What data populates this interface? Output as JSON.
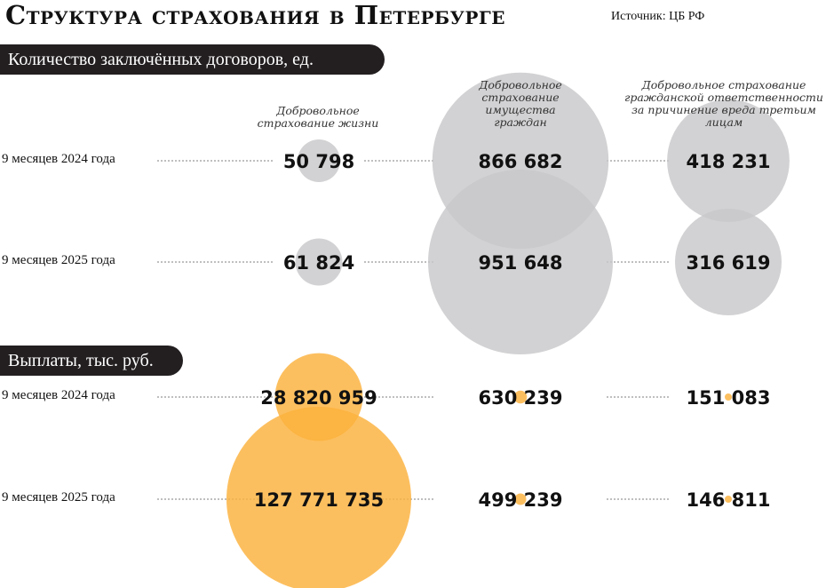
{
  "title": "Структура страхования в Петербурге",
  "source": "Источник: ЦБ РФ",
  "sections": [
    {
      "label": "Количество заключённых  договоров, ед."
    },
    {
      "label": "Выплаты, тыс. руб."
    }
  ],
  "row_labels": [
    "9 месяцев 2024 года",
    "9 месяцев 2025 года"
  ],
  "column_headers": [
    "Добровольное страхование жизни",
    "Добровольное страхование имущества граждан",
    "Добровольное страхование гражданской ответственности за причинение вреда третьим лицам"
  ],
  "colors": {
    "contracts_bubble": "#c8c8ca",
    "payments_bubble": "#fbb13c",
    "pill": "#231f20"
  },
  "chart_data": {
    "type": "bubble",
    "title": "Структура страхования в Петербурге",
    "categories": [
      "Добровольное страхование жизни",
      "Добровольное страхование имущества граждан",
      "Добровольное страхование гражданской ответственности за причинение вреда третьим лицам"
    ],
    "periods": [
      "9 месяцев 2024 года",
      "9 месяцев 2025 года"
    ],
    "panels": [
      {
        "name": "Количество заключённых  договоров, ед.",
        "series": [
          {
            "name": "9 месяцев 2024 года",
            "values": [
              50798,
              866682,
              418231
            ],
            "labels": [
              "50 798",
              "866 682",
              "418 231"
            ]
          },
          {
            "name": "9 месяцев 2025 года",
            "values": [
              61824,
              951648,
              316619
            ],
            "labels": [
              "61 824",
              "951 648",
              "316 619"
            ]
          }
        ]
      },
      {
        "name": "Выплаты, тыс. руб.",
        "series": [
          {
            "name": "9 месяцев 2024 года",
            "values": [
              28820959,
              630239,
              151083
            ],
            "labels": [
              "28 820 959",
              "630 239",
              "151 083"
            ]
          },
          {
            "name": "9 месяцев 2025 года",
            "values": [
              127771735,
              499239,
              146811
            ],
            "labels": [
              "127 771 735",
              "499 239",
              "146 811"
            ]
          }
        ]
      }
    ]
  }
}
